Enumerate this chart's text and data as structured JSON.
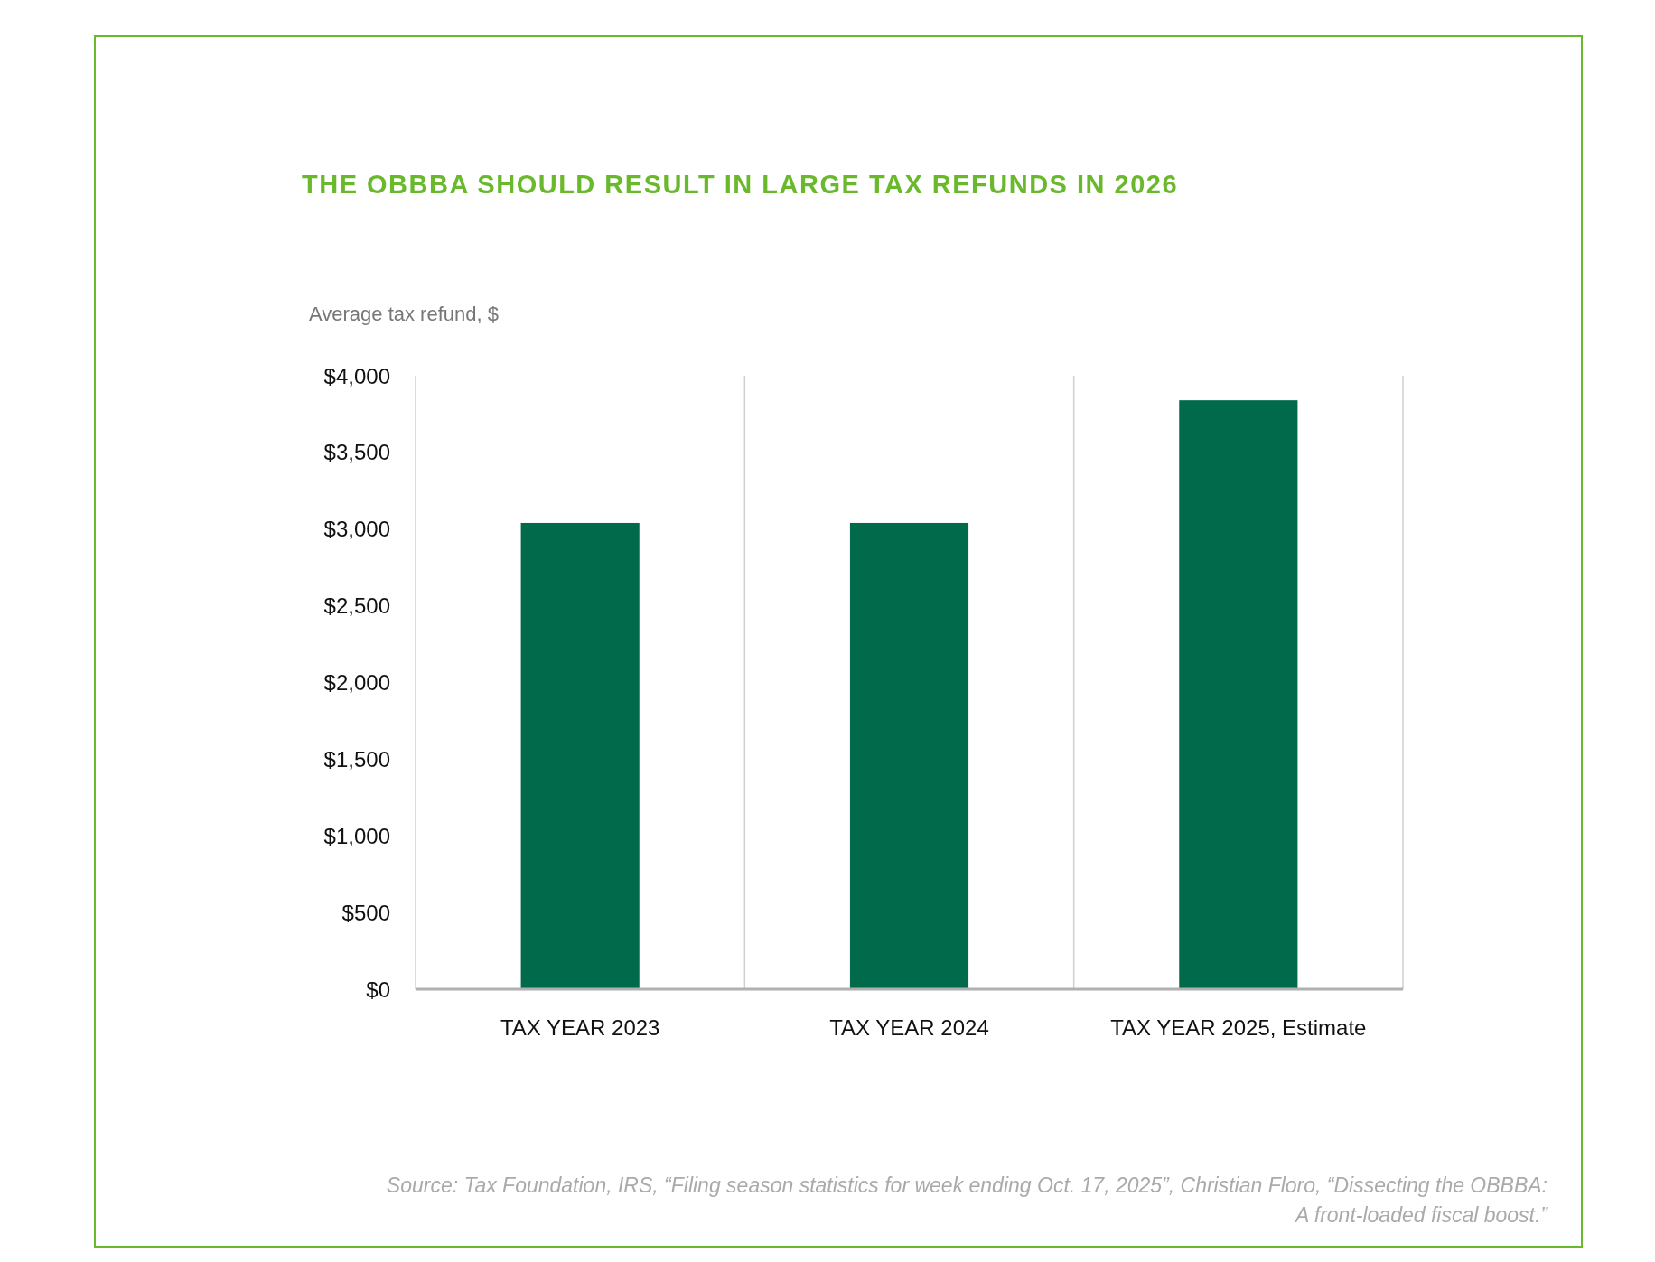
{
  "chart_data": {
    "type": "bar",
    "title": "THE OBBBA SHOULD RESULT IN LARGE TAX REFUNDS IN 2026",
    "ylabel": "Average tax refund, $",
    "categories": [
      "TAX YEAR 2023",
      "TAX YEAR 2024",
      "TAX YEAR 2025, Estimate"
    ],
    "values": [
      3040,
      3040,
      3840
    ],
    "color": "#006a4a",
    "ylim": [
      0,
      4000
    ],
    "yticks": [
      {
        "value": 0,
        "label": "$0"
      },
      {
        "value": 500,
        "label": "$500"
      },
      {
        "value": 1000,
        "label": "$1,000"
      },
      {
        "value": 1500,
        "label": "$1,500"
      },
      {
        "value": 2000,
        "label": "$2,000"
      },
      {
        "value": 2500,
        "label": "$2,500"
      },
      {
        "value": 3000,
        "label": "$3,000"
      },
      {
        "value": 3500,
        "label": "$3,500"
      },
      {
        "value": 4000,
        "label": "$4,000"
      }
    ],
    "grid": "x",
    "legend": false,
    "annotations": [
      "Source: Tax Foundation, IRS, “Filing season statistics for week ending Oct. 17, 2025”, Christian Floro, “Dissecting the OBBBA:",
      "A front-loaded fiscal boost.”"
    ]
  }
}
